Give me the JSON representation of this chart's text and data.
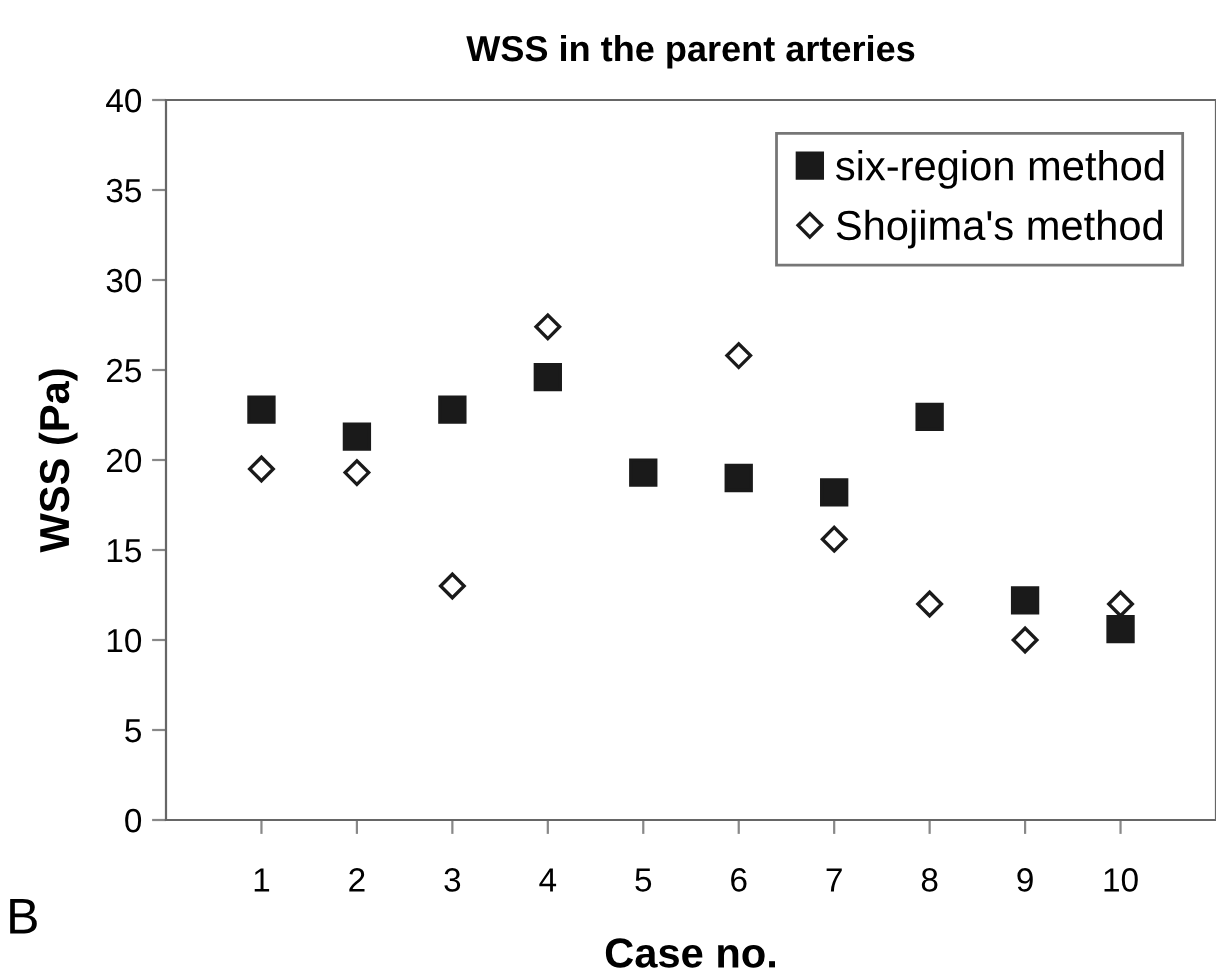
{
  "chart_data": {
    "type": "scatter",
    "title": "WSS in the parent arteries",
    "xlabel": "Case no.",
    "ylabel": "WSS (Pa)",
    "annotations": [
      "B"
    ],
    "x": [
      1,
      2,
      3,
      4,
      5,
      6,
      7,
      8,
      9,
      10
    ],
    "series": [
      {
        "name": "six-region method",
        "color": "#1a1a1a",
        "marker": "square",
        "values": [
          22.8,
          21.3,
          22.8,
          24.6,
          19.3,
          19.0,
          18.2,
          22.4,
          12.2,
          10.6
        ]
      },
      {
        "name": "Shojima's method",
        "color": "#ffffff",
        "marker": "diamond",
        "values": [
          19.5,
          19.3,
          13.0,
          27.4,
          null,
          25.8,
          15.6,
          12.0,
          10.0,
          12.0
        ]
      }
    ],
    "xlim": [
      0,
      11
    ],
    "xticks": [
      1,
      2,
      3,
      4,
      5,
      6,
      7,
      8,
      9,
      10
    ],
    "ylim": [
      0,
      40
    ],
    "yticks": [
      0,
      5,
      10,
      15,
      20,
      25,
      30,
      35,
      40
    ],
    "grid": false,
    "legend": "top right"
  }
}
